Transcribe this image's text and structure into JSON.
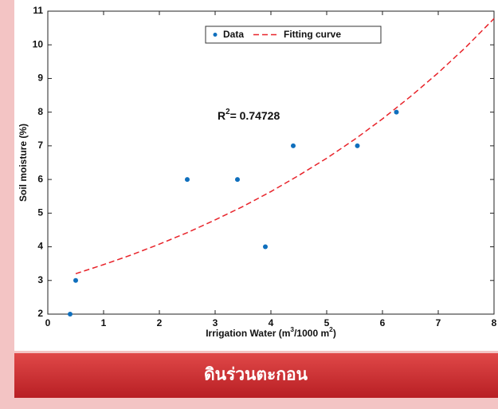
{
  "chart_data": {
    "type": "scatter",
    "xlabel": [
      {
        "text": "Irrigation Water (m"
      },
      {
        "text": "3",
        "sup": true
      },
      {
        "text": "/1000 m"
      },
      {
        "text": "2",
        "sup": true
      },
      {
        "text": ")"
      }
    ],
    "ylabel": "Soil moisture (%)",
    "annotation": [
      {
        "text": "R"
      },
      {
        "text": "2",
        "sup": true
      },
      {
        "text": "= 0.74728"
      }
    ],
    "banner": "ดินร่วนตะกอน",
    "xlim": [
      0,
      8
    ],
    "xticks": [
      0,
      1,
      2,
      3,
      4,
      5,
      6,
      7,
      8
    ],
    "ylim": [
      2,
      11
    ],
    "yticks": [
      2,
      3,
      4,
      5,
      6,
      7,
      8,
      9,
      10,
      11
    ],
    "grid": false,
    "legend": "top",
    "series": [
      {
        "name": "Data",
        "color": "#0f6fbd",
        "kind": "points",
        "x": [
          0.4,
          0.5,
          2.5,
          3.4,
          3.9,
          4.4,
          5.55,
          6.25
        ],
        "values": [
          2,
          3,
          6,
          6,
          4,
          7,
          7,
          8
        ]
      },
      {
        "name": "Fitting curve",
        "color": "#e8232a",
        "kind": "dashed",
        "x": [
          0.5,
          1,
          1.5,
          2,
          2.5,
          3,
          3.5,
          4,
          4.5,
          5,
          5.5,
          6,
          6.5,
          7,
          7.5,
          8
        ],
        "values": [
          3.2,
          3.47,
          3.76,
          4.08,
          4.42,
          4.8,
          5.2,
          5.64,
          6.12,
          6.63,
          7.19,
          7.8,
          8.46,
          9.17,
          9.94,
          10.78
        ]
      }
    ]
  }
}
